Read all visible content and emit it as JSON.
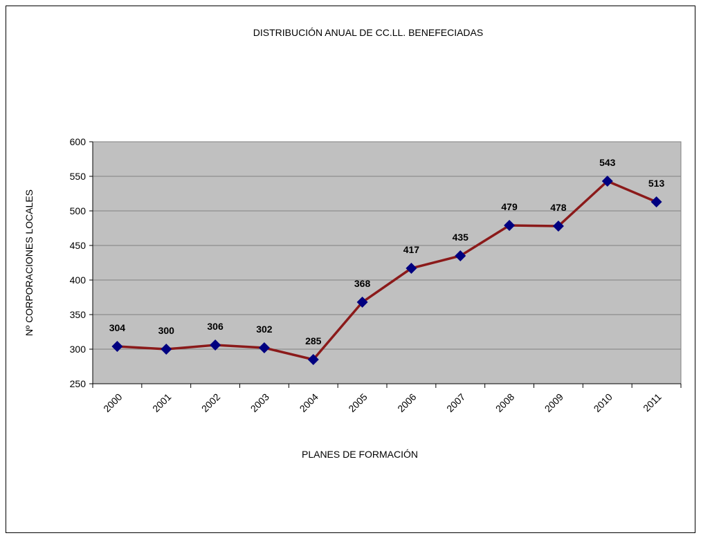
{
  "chart_data": {
    "type": "line",
    "title": "DISTRIBUCIÓN ANUAL DE CC.LL. BENEFECIADAS",
    "x_label": "PLANES DE FORMACIÓN",
    "y_label": "Nº CORPORACIONES LOCALES",
    "categories": [
      "2000",
      "2001",
      "2002",
      "2003",
      "2004",
      "2005",
      "2006",
      "2007",
      "2008",
      "2009",
      "2010",
      "2011"
    ],
    "values": [
      304,
      300,
      306,
      302,
      285,
      368,
      417,
      435,
      479,
      478,
      543,
      513
    ],
    "line_color": "#8b1a1a",
    "marker_color": "#000080",
    "plot_background": "#c0c0c0",
    "ylim": [
      250,
      600
    ],
    "yticks": [
      250,
      300,
      350,
      400,
      450,
      500,
      550,
      600
    ],
    "grid": true
  }
}
